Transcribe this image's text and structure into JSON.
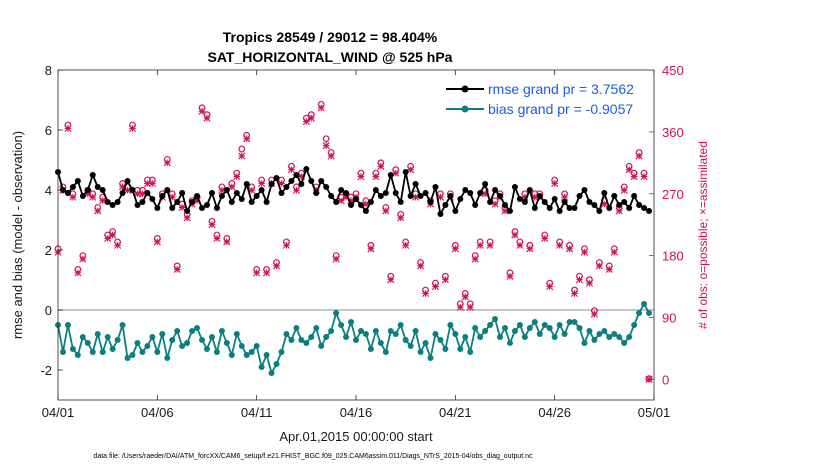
{
  "chart_data": {
    "type": "line",
    "title_line1": "Tropics 28549 / 29012 = 98.404%",
    "title_line2": "SAT_HORIZONTAL_WIND @ 525 hPa",
    "xlabel": "Apr.01,2015 00:00:00 start",
    "ylabel": "rmse and bias (model - observation)",
    "y2label": "# of obs: o=possible; ×=assimilated",
    "footer": "data file: /Users/raeder/DAI/ATM_forcXX/CAM6_setup/f.e21.FHIST_BGC.f09_025.CAM6assim.011/Diags_NTrS_2015-04/obs_diag_output.nc",
    "xlim": [
      0,
      30
    ],
    "ylim": [
      -3,
      8
    ],
    "y2lim": [
      -30,
      450
    ],
    "x_ticks": [
      0,
      5,
      10,
      15,
      20,
      25,
      30
    ],
    "x_tick_labels": [
      "04/01",
      "04/06",
      "04/11",
      "04/16",
      "04/21",
      "04/26",
      "05/01"
    ],
    "y_ticks": [
      -2,
      0,
      2,
      4,
      6,
      8
    ],
    "y_tick_labels": [
      "-2",
      "0",
      "2",
      "4",
      "6",
      "8"
    ],
    "y2_ticks": [
      0,
      90,
      180,
      270,
      360,
      450
    ],
    "y2_tick_labels": [
      "0",
      "90",
      "180",
      "270",
      "360",
      "450"
    ],
    "zero_line": 0,
    "legend_position": "top-right",
    "series": [
      {
        "name": "rmse grand pr = 3.7562",
        "color": "#000000",
        "axis": "left",
        "x": [
          0.0,
          0.25,
          0.5,
          0.75,
          1.0,
          1.25,
          1.5,
          1.75,
          2.0,
          2.25,
          2.5,
          2.75,
          3.0,
          3.25,
          3.5,
          3.75,
          4.0,
          4.25,
          4.5,
          4.75,
          5.0,
          5.25,
          5.5,
          5.75,
          6.0,
          6.25,
          6.5,
          6.75,
          7.0,
          7.25,
          7.5,
          7.75,
          8.0,
          8.25,
          8.5,
          8.75,
          9.0,
          9.25,
          9.5,
          9.75,
          10.0,
          10.25,
          10.5,
          10.75,
          11.0,
          11.25,
          11.5,
          11.75,
          12.0,
          12.25,
          12.5,
          12.75,
          13.0,
          13.25,
          13.5,
          13.75,
          14.0,
          14.25,
          14.5,
          14.75,
          15.0,
          15.25,
          15.5,
          15.75,
          16.0,
          16.25,
          16.5,
          16.75,
          17.0,
          17.25,
          17.5,
          17.75,
          18.0,
          18.25,
          18.5,
          18.75,
          19.0,
          19.25,
          19.5,
          19.75,
          20.0,
          20.25,
          20.5,
          20.75,
          21.0,
          21.25,
          21.5,
          21.75,
          22.0,
          22.25,
          22.5,
          22.75,
          23.0,
          23.25,
          23.5,
          23.75,
          24.0,
          24.25,
          24.5,
          24.75,
          25.0,
          25.25,
          25.5,
          25.75,
          26.0,
          26.25,
          26.5,
          26.75,
          27.0,
          27.25,
          27.5,
          27.75,
          28.0,
          28.25,
          28.5,
          28.75,
          29.0,
          29.25,
          29.5,
          29.75
        ],
        "values": [
          4.6,
          4.0,
          3.9,
          4.1,
          4.3,
          3.8,
          4.0,
          4.5,
          4.1,
          4.0,
          3.6,
          3.5,
          3.6,
          3.9,
          4.3,
          4.0,
          3.5,
          3.6,
          3.9,
          3.7,
          3.4,
          3.8,
          4.0,
          3.4,
          3.6,
          3.9,
          3.3,
          3.6,
          3.8,
          3.4,
          3.5,
          3.9,
          3.4,
          3.8,
          4.0,
          3.6,
          3.9,
          3.7,
          4.2,
          3.6,
          3.8,
          4.0,
          3.6,
          4.2,
          4.4,
          3.9,
          4.1,
          4.3,
          4.5,
          4.2,
          4.7,
          4.3,
          3.9,
          4.3,
          4.1,
          3.8,
          3.6,
          4.0,
          3.9,
          3.5,
          3.7,
          3.5,
          3.3,
          3.6,
          4.0,
          3.8,
          3.9,
          4.5,
          3.9,
          3.6,
          4.6,
          3.8,
          4.2,
          3.8,
          3.9,
          3.6,
          4.1,
          3.2,
          3.5,
          3.8,
          3.3,
          3.7,
          4.0,
          3.9,
          3.5,
          3.9,
          4.2,
          3.6,
          4.0,
          3.8,
          3.5,
          3.3,
          4.1,
          3.7,
          3.6,
          4.0,
          3.4,
          3.8,
          3.6,
          3.4,
          3.7,
          3.3,
          3.6,
          3.4,
          3.4,
          3.8,
          4.0,
          3.6,
          3.5,
          3.3,
          3.9,
          3.4,
          3.8,
          3.5,
          3.6,
          3.4,
          3.8,
          3.5,
          3.4,
          3.3
        ]
      },
      {
        "name": "bias grand pr = -0.9057",
        "color": "#0b7f7f",
        "axis": "left",
        "x": [
          0.0,
          0.25,
          0.5,
          0.75,
          1.0,
          1.25,
          1.5,
          1.75,
          2.0,
          2.25,
          2.5,
          2.75,
          3.0,
          3.25,
          3.5,
          3.75,
          4.0,
          4.25,
          4.5,
          4.75,
          5.0,
          5.25,
          5.5,
          5.75,
          6.0,
          6.25,
          6.5,
          6.75,
          7.0,
          7.25,
          7.5,
          7.75,
          8.0,
          8.25,
          8.5,
          8.75,
          9.0,
          9.25,
          9.5,
          9.75,
          10.0,
          10.25,
          10.5,
          10.75,
          11.0,
          11.25,
          11.5,
          11.75,
          12.0,
          12.25,
          12.5,
          12.75,
          13.0,
          13.25,
          13.5,
          13.75,
          14.0,
          14.25,
          14.5,
          14.75,
          15.0,
          15.25,
          15.5,
          15.75,
          16.0,
          16.25,
          16.5,
          16.75,
          17.0,
          17.25,
          17.5,
          17.75,
          18.0,
          18.25,
          18.5,
          18.75,
          19.0,
          19.25,
          19.5,
          19.75,
          20.0,
          20.25,
          20.5,
          20.75,
          21.0,
          21.25,
          21.5,
          21.75,
          22.0,
          22.25,
          22.5,
          22.75,
          23.0,
          23.25,
          23.5,
          23.75,
          24.0,
          24.25,
          24.5,
          24.75,
          25.0,
          25.25,
          25.5,
          25.75,
          26.0,
          26.25,
          26.5,
          26.75,
          27.0,
          27.25,
          27.5,
          27.75,
          28.0,
          28.25,
          28.5,
          28.75,
          29.0,
          29.25,
          29.5,
          29.75
        ],
        "values": [
          -0.5,
          -1.4,
          -0.5,
          -1.3,
          -1.5,
          -0.9,
          -1.1,
          -1.4,
          -0.8,
          -1.4,
          -0.9,
          -1.3,
          -1.0,
          -0.5,
          -1.6,
          -1.5,
          -1.1,
          -1.4,
          -1.2,
          -0.9,
          -1.4,
          -0.8,
          -1.6,
          -1.0,
          -0.7,
          -1.2,
          -1.1,
          -0.7,
          -0.6,
          -1.0,
          -1.3,
          -0.9,
          -1.4,
          -0.7,
          -1.1,
          -1.5,
          -0.8,
          -1.2,
          -1.5,
          -1.4,
          -1.2,
          -1.9,
          -1.5,
          -2.1,
          -1.8,
          -1.4,
          -0.8,
          -1.0,
          -0.6,
          -1.0,
          -1.1,
          -0.9,
          -0.6,
          -1.2,
          -0.9,
          -0.7,
          -0.1,
          -0.5,
          -0.9,
          -0.4,
          -1.0,
          -0.7,
          -0.8,
          -1.3,
          -0.7,
          -1.1,
          -1.4,
          -0.7,
          -0.8,
          -0.5,
          -1.0,
          -1.2,
          -0.7,
          -1.4,
          -1.1,
          -1.6,
          -0.8,
          -1.0,
          -1.3,
          -0.5,
          -0.8,
          -1.3,
          -0.9,
          -1.4,
          -0.6,
          -0.9,
          -0.7,
          -0.5,
          -0.3,
          -0.9,
          -0.6,
          -1.1,
          -0.7,
          -0.5,
          -0.9,
          -0.6,
          -0.4,
          -0.8,
          -0.5,
          -0.6,
          -0.9,
          -0.5,
          -0.8,
          -0.4,
          -0.4,
          -0.6,
          -1.1,
          -0.7,
          -1.0,
          -0.8,
          -0.7,
          -0.9,
          -0.8,
          -0.9,
          -1.1,
          -0.9,
          -0.5,
          -0.1,
          0.2,
          -0.1
        ]
      },
      {
        "name": "obs possible",
        "marker": "o",
        "color": "#d0105a",
        "axis": "right",
        "x": [
          0.0,
          0.25,
          0.5,
          0.75,
          1.0,
          1.25,
          1.5,
          1.75,
          2.0,
          2.25,
          2.5,
          2.75,
          3.0,
          3.25,
          3.5,
          3.75,
          4.0,
          4.25,
          4.5,
          4.75,
          5.0,
          5.25,
          5.5,
          5.75,
          6.0,
          6.25,
          6.5,
          6.75,
          7.0,
          7.25,
          7.5,
          7.75,
          8.0,
          8.25,
          8.5,
          8.75,
          9.0,
          9.25,
          9.5,
          9.75,
          10.0,
          10.25,
          10.5,
          10.75,
          11.0,
          11.25,
          11.5,
          11.75,
          12.0,
          12.25,
          12.5,
          12.75,
          13.0,
          13.25,
          13.5,
          13.75,
          14.0,
          14.25,
          14.5,
          14.75,
          15.0,
          15.25,
          15.5,
          15.75,
          16.0,
          16.25,
          16.5,
          16.75,
          17.0,
          17.25,
          17.5,
          17.75,
          18.0,
          18.25,
          18.5,
          18.75,
          19.0,
          19.25,
          19.5,
          19.75,
          20.0,
          20.25,
          20.5,
          20.75,
          21.0,
          21.25,
          21.5,
          21.75,
          22.0,
          22.25,
          22.5,
          22.75,
          23.0,
          23.25,
          23.5,
          23.75,
          24.0,
          24.25,
          24.5,
          24.75,
          25.0,
          25.25,
          25.5,
          25.75,
          26.0,
          26.25,
          26.5,
          26.75,
          27.0,
          27.25,
          27.5,
          27.75,
          28.0,
          28.25,
          28.5,
          28.75,
          29.0,
          29.25,
          29.5,
          29.75
        ],
        "values": [
          190,
          280,
          370,
          270,
          160,
          180,
          275,
          270,
          250,
          265,
          210,
          215,
          200,
          285,
          280,
          370,
          275,
          275,
          290,
          290,
          205,
          270,
          320,
          270,
          165,
          255,
          240,
          260,
          265,
          395,
          385,
          230,
          210,
          280,
          205,
          285,
          300,
          335,
          355,
          280,
          160,
          290,
          160,
          290,
          170,
          290,
          200,
          310,
          280,
          300,
          380,
          385,
          280,
          400,
          350,
          330,
          180,
          265,
          270,
          265,
          270,
          300,
          260,
          195,
          300,
          315,
          250,
          150,
          305,
          240,
          200,
          310,
          270,
          170,
          130,
          260,
          140,
          270,
          150,
          270,
          195,
          110,
          125,
          110,
          180,
          200,
          275,
          200,
          260,
          270,
          250,
          155,
          215,
          200,
          270,
          195,
          270,
          270,
          210,
          140,
          290,
          200,
          270,
          195,
          130,
          150,
          190,
          145,
          100,
          170,
          260,
          165,
          190,
          250,
          280,
          310,
          300,
          330,
          300,
          1
        ]
      },
      {
        "name": "obs assimilated",
        "marker": "x",
        "color": "#d0105a",
        "axis": "right",
        "x": [
          0.0,
          0.25,
          0.5,
          0.75,
          1.0,
          1.25,
          1.5,
          1.75,
          2.0,
          2.25,
          2.5,
          2.75,
          3.0,
          3.25,
          3.5,
          3.75,
          4.0,
          4.25,
          4.5,
          4.75,
          5.0,
          5.25,
          5.5,
          5.75,
          6.0,
          6.25,
          6.5,
          6.75,
          7.0,
          7.25,
          7.5,
          7.75,
          8.0,
          8.25,
          8.5,
          8.75,
          9.0,
          9.25,
          9.5,
          9.75,
          10.0,
          10.25,
          10.5,
          10.75,
          11.0,
          11.25,
          11.5,
          11.75,
          12.0,
          12.25,
          12.5,
          12.75,
          13.0,
          13.25,
          13.5,
          13.75,
          14.0,
          14.25,
          14.5,
          14.75,
          15.0,
          15.25,
          15.5,
          15.75,
          16.0,
          16.25,
          16.5,
          16.75,
          17.0,
          17.25,
          17.5,
          17.75,
          18.0,
          18.25,
          18.5,
          18.75,
          19.0,
          19.25,
          19.5,
          19.75,
          20.0,
          20.25,
          20.5,
          20.75,
          21.0,
          21.25,
          21.5,
          21.75,
          22.0,
          22.25,
          22.5,
          22.75,
          23.0,
          23.25,
          23.5,
          23.75,
          24.0,
          24.25,
          24.5,
          24.75,
          25.0,
          25.25,
          25.5,
          25.75,
          26.0,
          26.25,
          26.5,
          26.75,
          27.0,
          27.25,
          27.5,
          27.75,
          28.0,
          28.25,
          28.5,
          28.75,
          29.0,
          29.25,
          29.5,
          29.75
        ],
        "values": [
          185,
          275,
          365,
          265,
          155,
          175,
          270,
          265,
          245,
          260,
          205,
          210,
          195,
          280,
          275,
          365,
          270,
          270,
          285,
          285,
          200,
          265,
          315,
          265,
          160,
          250,
          235,
          255,
          260,
          390,
          380,
          225,
          205,
          275,
          200,
          280,
          295,
          325,
          350,
          275,
          155,
          285,
          155,
          285,
          165,
          285,
          195,
          305,
          275,
          295,
          375,
          380,
          275,
          395,
          340,
          325,
          175,
          260,
          265,
          260,
          265,
          295,
          255,
          190,
          295,
          310,
          245,
          145,
          300,
          235,
          195,
          305,
          265,
          165,
          125,
          255,
          135,
          265,
          145,
          265,
          190,
          105,
          120,
          105,
          175,
          195,
          270,
          195,
          255,
          265,
          245,
          150,
          210,
          195,
          265,
          190,
          265,
          265,
          205,
          135,
          285,
          195,
          265,
          190,
          125,
          145,
          185,
          140,
          95,
          165,
          255,
          160,
          185,
          245,
          275,
          305,
          295,
          325,
          295,
          0
        ]
      }
    ]
  }
}
